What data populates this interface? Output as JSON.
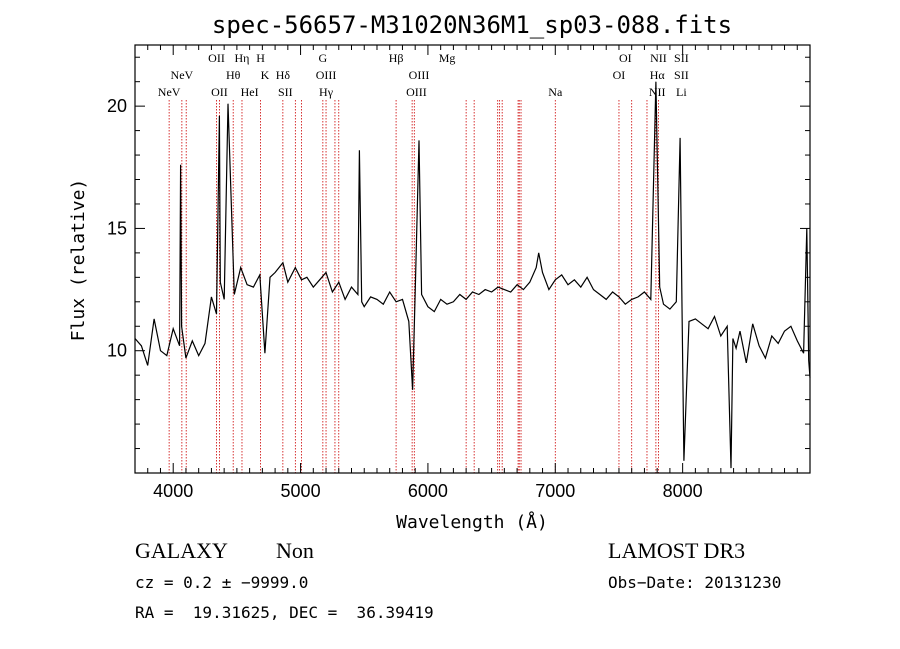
{
  "chart_data": {
    "type": "line",
    "title": "spec-56657-M31020N36M1_sp03-088.fits",
    "xlabel": "Wavelength (Å)",
    "ylabel": "Flux (relative)",
    "xlim": [
      3700,
      9000
    ],
    "ylim": [
      5.0,
      22.5
    ],
    "x_ticks": [
      "4000",
      "5000",
      "6000",
      "7000",
      "8000"
    ],
    "y_ticks": [
      "10",
      "15",
      "20"
    ],
    "grid": false,
    "line_color": "#000000",
    "marker_color": "#cc0000",
    "spectrum": {
      "x": [
        3700,
        3750,
        3800,
        3850,
        3900,
        3950,
        4000,
        4050,
        4058,
        4066,
        4100,
        4150,
        4200,
        4250,
        4300,
        4340,
        4363,
        4370,
        4400,
        4430,
        4480,
        4530,
        4580,
        4630,
        4680,
        4720,
        4760,
        4800,
        4861,
        4900,
        4959,
        5007,
        5050,
        5100,
        5150,
        5200,
        5250,
        5300,
        5350,
        5400,
        5450,
        5462,
        5480,
        5500,
        5550,
        5600,
        5650,
        5700,
        5750,
        5800,
        5850,
        5880,
        5900,
        5930,
        5950,
        6000,
        6050,
        6100,
        6150,
        6200,
        6250,
        6300,
        6350,
        6400,
        6450,
        6500,
        6550,
        6600,
        6650,
        6700,
        6750,
        6800,
        6850,
        6870,
        6900,
        6950,
        7000,
        7050,
        7100,
        7150,
        7200,
        7250,
        7300,
        7350,
        7400,
        7450,
        7500,
        7550,
        7600,
        7650,
        7700,
        7750,
        7790,
        7805,
        7820,
        7850,
        7900,
        7950,
        7980,
        7995,
        8010,
        8050,
        8100,
        8150,
        8200,
        8250,
        8300,
        8350,
        8380,
        8395,
        8420,
        8450,
        8500,
        8550,
        8600,
        8650,
        8700,
        8750,
        8800,
        8850,
        8900,
        8950,
        8975,
        8990,
        9000
      ],
      "y": [
        10.5,
        10.2,
        9.4,
        11.3,
        10.0,
        9.8,
        10.9,
        10.2,
        17.6,
        11.0,
        9.7,
        10.4,
        9.8,
        10.3,
        12.2,
        11.5,
        19.6,
        12.8,
        12.1,
        20.1,
        12.3,
        13.4,
        12.7,
        12.6,
        13.1,
        9.9,
        13.0,
        13.2,
        13.6,
        12.8,
        13.4,
        12.9,
        13.0,
        12.6,
        12.9,
        13.2,
        12.4,
        12.8,
        12.1,
        12.6,
        12.3,
        18.2,
        12.0,
        11.8,
        12.2,
        12.1,
        11.9,
        12.4,
        12.0,
        12.1,
        11.2,
        8.4,
        12.4,
        18.6,
        12.3,
        11.8,
        11.6,
        12.1,
        11.9,
        12.0,
        12.3,
        12.1,
        12.4,
        12.3,
        12.5,
        12.4,
        12.6,
        12.5,
        12.4,
        12.7,
        12.5,
        12.8,
        13.4,
        14.0,
        13.2,
        12.5,
        12.9,
        13.1,
        12.7,
        12.9,
        12.6,
        13.0,
        12.5,
        12.3,
        12.1,
        12.4,
        12.2,
        11.9,
        12.1,
        12.2,
        12.4,
        12.1,
        21.0,
        16.8,
        12.6,
        11.9,
        11.7,
        12.0,
        18.7,
        11.8,
        5.5,
        11.2,
        11.3,
        11.1,
        10.9,
        11.4,
        10.6,
        11.0,
        5.2,
        10.5,
        10.1,
        10.8,
        9.5,
        11.1,
        10.2,
        9.7,
        10.6,
        10.3,
        10.8,
        11.0,
        10.4,
        9.9,
        15.0,
        9.6,
        8.9
      ]
    },
    "line_markers": {
      "x": [
        3968,
        4068,
        4340,
        4363,
        4102,
        4471,
        4540,
        4686,
        4861,
        4959,
        5007,
        5200,
        5175,
        5270,
        5300,
        5750,
        5876,
        5893,
        6300,
        6363,
        6548,
        6563,
        6583,
        6717,
        6731,
        6708,
        7000,
        7500,
        7600,
        7720,
        7790,
        7810
      ],
      "labels": [
        {
          "text": "NeV",
          "row": 3
        },
        {
          "text": "NeV",
          "row": 2
        },
        {
          "text": "OII",
          "row": 1
        },
        {
          "text": "OII",
          "row": 3
        },
        {
          "text": "Hθ",
          "row": 2
        },
        {
          "text": "Hη",
          "row": 1
        },
        {
          "text": "HeI",
          "row": 3
        },
        {
          "text": "H",
          "row": 1
        },
        {
          "text": "K",
          "row": 2
        },
        {
          "text": "Hδ",
          "row": 2
        },
        {
          "text": "SII",
          "row": 3
        },
        {
          "text": "G",
          "row": 1
        },
        {
          "text": "OIII",
          "row": 2
        },
        {
          "text": "Hγ",
          "row": 3
        },
        {
          "text": "Hβ",
          "row": 1
        },
        {
          "text": "OIII",
          "row": 2
        },
        {
          "text": "OIII",
          "row": 3
        },
        {
          "text": "Mg",
          "row": 1
        },
        {
          "text": "Na",
          "row": 3
        },
        {
          "text": "OI",
          "row": 1
        },
        {
          "text": "OI",
          "row": 2
        },
        {
          "text": "NII",
          "row": 1
        },
        {
          "text": "Hα",
          "row": 2
        },
        {
          "text": "NII",
          "row": 3
        },
        {
          "text": "SII",
          "row": 1
        },
        {
          "text": "SII",
          "row": 2
        },
        {
          "text": "Li",
          "row": 3
        }
      ],
      "label_wavelengths": [
        3968,
        4068,
        4340,
        4363,
        4471,
        4540,
        4600,
        4686,
        4720,
        4861,
        4880,
        5175,
        5200,
        5200,
        5750,
        5930,
        5910,
        6150,
        7000,
        7550,
        7500,
        7810,
        7800,
        7800,
        7990,
        7990,
        7990
      ]
    }
  },
  "info": {
    "class_name": "GALAXY",
    "subclass": "Non",
    "survey": "LAMOST DR3",
    "cz": "cz = 0.2 ± −9999.0",
    "obs_date": "Obs−Date: 20131230",
    "radec": "RA =  19.31625, DEC =  36.39419"
  }
}
